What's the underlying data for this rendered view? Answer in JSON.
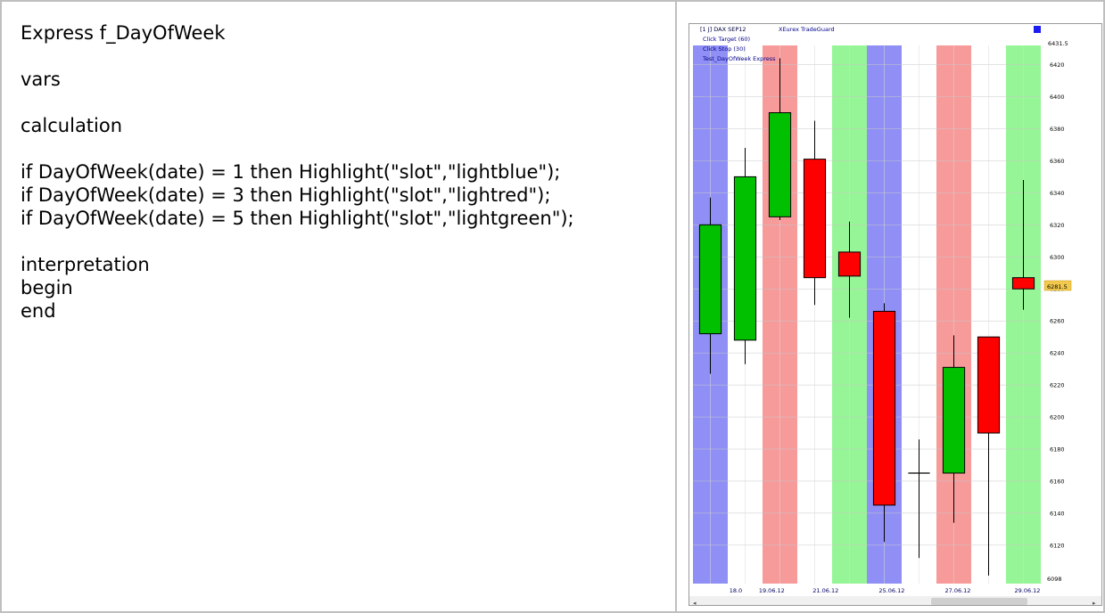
{
  "code_lines": [
    "Express f_DayOfWeek",
    "",
    "vars",
    "",
    "calculation",
    "",
    "if DayOfWeek(date) = 1 then Highlight(\"slot\",\"lightblue\");",
    "if DayOfWeek(date) = 3 then Highlight(\"slot\",\"lightred\");",
    "if DayOfWeek(date) = 5 then Highlight(\"slot\",\"lightgreen\");",
    "",
    "interpretation",
    "begin",
    "end"
  ],
  "chart_window": {
    "header": {
      "instrument": "[1 J] DAX SEP12",
      "broker": "XEurex TradeGuard",
      "line2": "Click Target (60)",
      "line3": "Click Stop (30)",
      "line4": "Test_DayOfWeek Express"
    },
    "colors": {
      "highlight_blue": "#8f8ff6",
      "highlight_red": "#f79a9a",
      "highlight_green": "#96f596",
      "candle_up": "#00c000",
      "candle_down": "#ff0000",
      "price_marker": "#f2c94c"
    },
    "last_price_label": "6281.5",
    "top_price_label": "6431.5",
    "bottom_price_label": "6098"
  },
  "chart_data": {
    "type": "candlestick",
    "ylim": [
      6096,
      6432
    ],
    "y_ticks": [
      6420,
      6400,
      6380,
      6360,
      6340,
      6320,
      6300,
      6280,
      6260,
      6240,
      6220,
      6200,
      6180,
      6160,
      6140,
      6120
    ],
    "x_ticks": [
      "18.0",
      "19.06.12",
      "21.06.12",
      "25.06.12",
      "27.06.12",
      "29.06.12"
    ],
    "candles": [
      {
        "open": 6252,
        "high": 6337,
        "low": 6227,
        "close": 6320,
        "highlight": "blue"
      },
      {
        "open": 6248,
        "high": 6368,
        "low": 6233,
        "close": 6350,
        "highlight": ""
      },
      {
        "open": 6325,
        "high": 6424,
        "low": 6323,
        "close": 6390,
        "highlight": "red"
      },
      {
        "open": 6361,
        "high": 6385,
        "low": 6270,
        "close": 6287,
        "highlight": ""
      },
      {
        "open": 6303,
        "high": 6322,
        "low": 6262,
        "close": 6288,
        "highlight": "green"
      },
      {
        "open": 6266,
        "high": 6271,
        "low": 6122,
        "close": 6145,
        "highlight": "blue"
      },
      {
        "open": 6165,
        "high": 6186,
        "low": 6112,
        "close": 6165,
        "highlight": ""
      },
      {
        "open": 6165,
        "high": 6251,
        "low": 6134,
        "close": 6231,
        "highlight": "red"
      },
      {
        "open": 6250,
        "high": 6250,
        "low": 6101,
        "close": 6190,
        "highlight": ""
      },
      {
        "open": 6287,
        "high": 6348,
        "low": 6267,
        "close": 6280,
        "highlight": "green"
      }
    ]
  }
}
